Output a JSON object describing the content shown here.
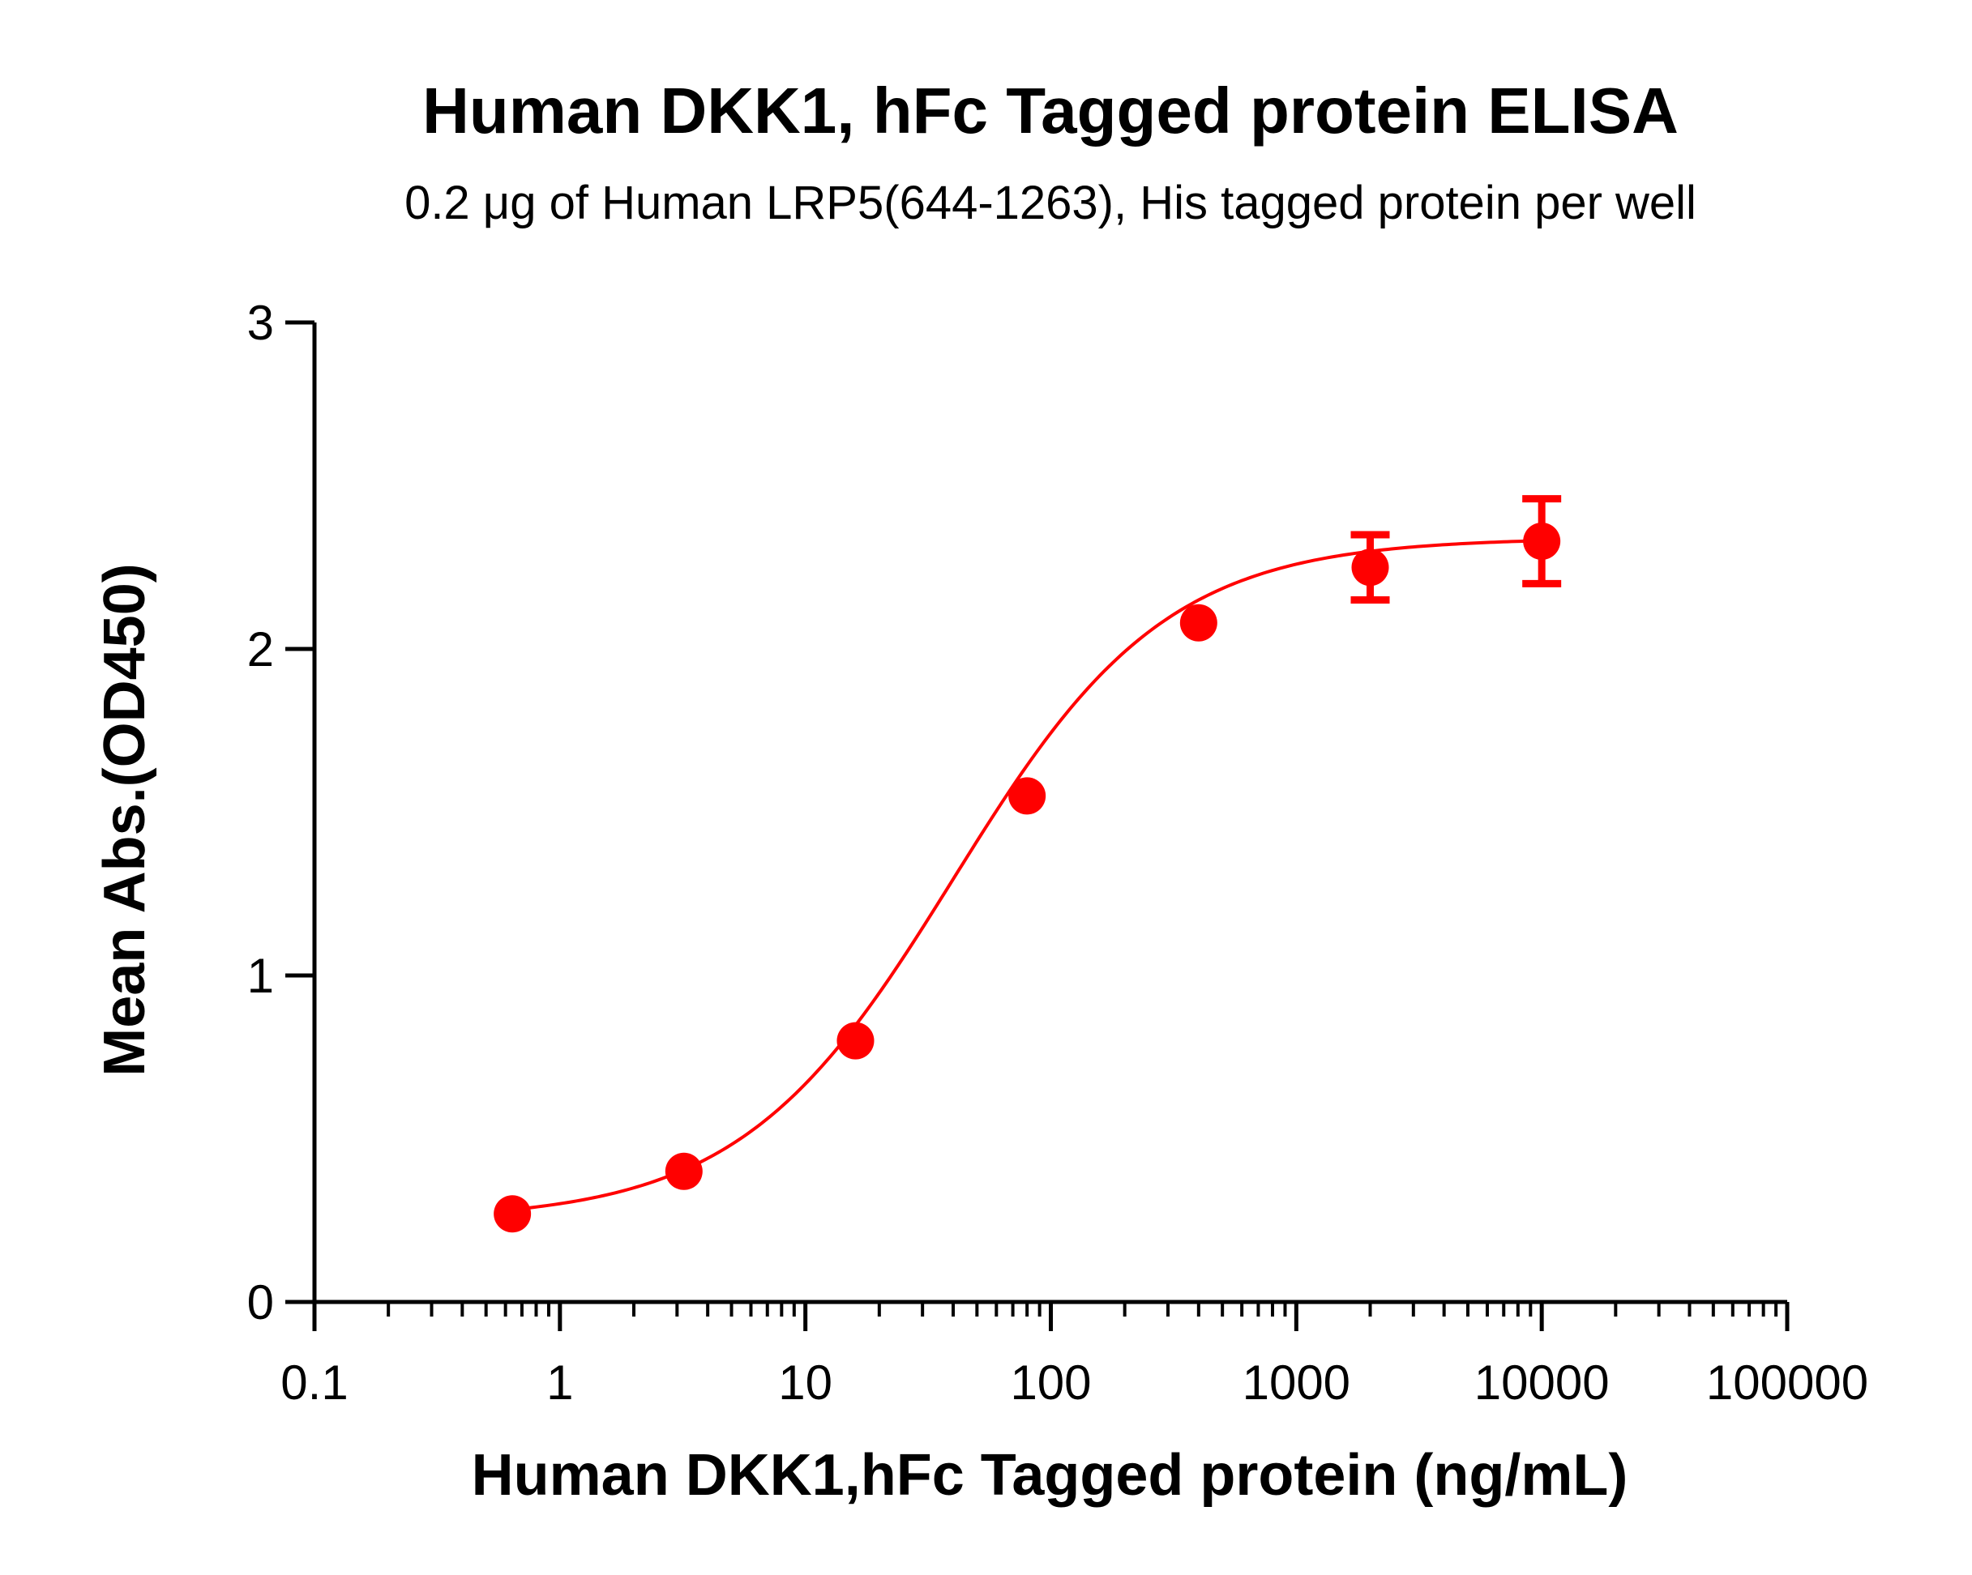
{
  "colors": {
    "series": "#ff0000",
    "axis": "#000000",
    "background": "#ffffff"
  },
  "chart_data": {
    "type": "scatter",
    "title": "Human DKK1, hFc Tagged protein  ELISA",
    "subtitle": "0.2 μg of Human LRP5(644-1263), His tagged protein per well",
    "xlabel": "Human DKK1,hFc Tagged protein (ng/mL)",
    "ylabel": "Mean Abs.(OD450)",
    "xscale": "log",
    "xlim": [
      0.1,
      100000
    ],
    "ylim": [
      0,
      3
    ],
    "xticks": [
      0.1,
      1,
      10,
      100,
      1000,
      10000,
      100000
    ],
    "xtick_labels": [
      "0.1",
      "1",
      "10",
      "100",
      "1000",
      "10000",
      "100000"
    ],
    "yticks": [
      0,
      1,
      2,
      3
    ],
    "ytick_labels": [
      "0",
      "1",
      "2",
      "3"
    ],
    "grid": false,
    "legend": "none",
    "series": [
      {
        "x": [
          0.64,
          3.2,
          16,
          80,
          400,
          2000,
          10000
        ],
        "y": [
          0.27,
          0.4,
          0.8,
          1.55,
          2.08,
          2.25,
          2.33
        ],
        "error": [
          0,
          0,
          0,
          0,
          0,
          0.1,
          0.13
        ],
        "fit": "4PL sigmoidal"
      }
    ]
  }
}
